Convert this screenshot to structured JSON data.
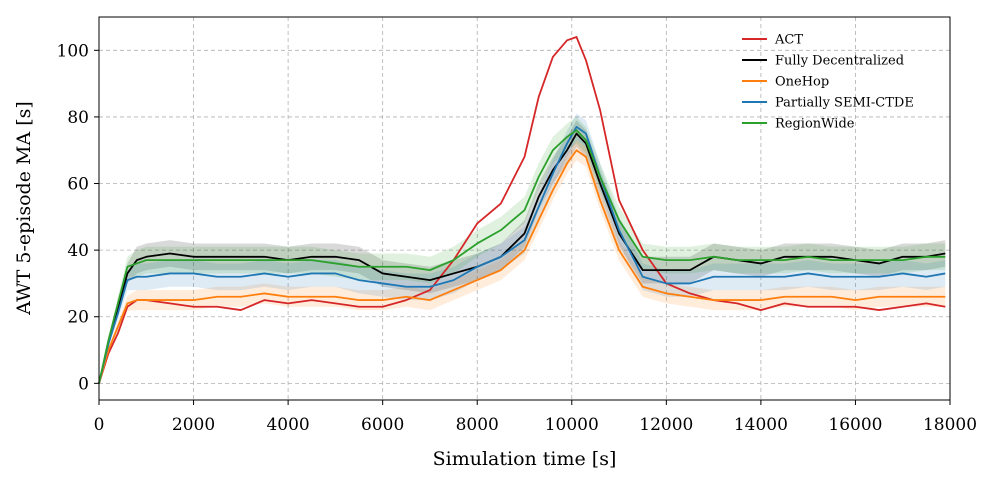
{
  "chart_data": {
    "type": "line",
    "title": "",
    "xlabel": "Simulation time [s]",
    "ylabel": "AWT 5-episode MA  [s]",
    "xlim": [
      0,
      18000
    ],
    "ylim": [
      -5,
      110
    ],
    "xticks": [
      0,
      2000,
      4000,
      6000,
      8000,
      10000,
      12000,
      14000,
      16000,
      18000
    ],
    "yticks": [
      0,
      20,
      40,
      60,
      80,
      100
    ],
    "grid": true,
    "legend_position": "top-right",
    "x": [
      0,
      200,
      400,
      600,
      800,
      1000,
      1500,
      2000,
      2500,
      3000,
      3500,
      4000,
      4500,
      5000,
      5500,
      6000,
      6500,
      7000,
      7500,
      8000,
      8500,
      9000,
      9300,
      9600,
      9900,
      10100,
      10300,
      10600,
      11000,
      11500,
      12000,
      12500,
      13000,
      13500,
      14000,
      14500,
      15000,
      15500,
      16000,
      16500,
      17000,
      17500,
      17900
    ],
    "series": [
      {
        "name": "ACT",
        "color": "#d62728",
        "values": [
          0,
          9,
          15,
          23,
          25,
          25,
          24,
          23,
          23,
          22,
          25,
          24,
          25,
          24,
          23,
          23,
          25,
          28,
          37,
          48,
          54,
          68,
          86,
          98,
          103,
          104,
          97,
          82,
          55,
          40,
          30,
          27,
          25,
          24,
          22,
          24,
          23,
          23,
          23,
          22,
          23,
          24,
          23
        ],
        "band": 0
      },
      {
        "name": "Fully Decentralized",
        "color": "#000000",
        "values": [
          0,
          12,
          22,
          33,
          37,
          38,
          39,
          38,
          38,
          38,
          38,
          37,
          38,
          38,
          37,
          33,
          32,
          31,
          33,
          35,
          38,
          45,
          56,
          64,
          70,
          75,
          72,
          60,
          45,
          34,
          34,
          34,
          38,
          37,
          36,
          38,
          38,
          38,
          37,
          36,
          38,
          38,
          39
        ],
        "band": 4
      },
      {
        "name": "OneHop",
        "color": "#ff7f0e",
        "values": [
          0,
          10,
          17,
          24,
          25,
          25,
          25,
          25,
          26,
          26,
          27,
          26,
          26,
          26,
          25,
          25,
          26,
          25,
          28,
          31,
          34,
          40,
          49,
          58,
          66,
          70,
          68,
          55,
          40,
          29,
          27,
          26,
          25,
          25,
          25,
          26,
          26,
          26,
          25,
          26,
          26,
          26,
          26
        ],
        "band": 3
      },
      {
        "name": "Partially SEMI-CTDE",
        "color": "#1f77b4",
        "values": [
          0,
          12,
          21,
          31,
          32,
          32,
          33,
          33,
          32,
          32,
          33,
          32,
          33,
          33,
          31,
          30,
          29,
          29,
          31,
          35,
          38,
          43,
          53,
          63,
          72,
          77,
          75,
          62,
          46,
          32,
          30,
          30,
          32,
          32,
          32,
          32,
          33,
          32,
          32,
          32,
          33,
          32,
          33
        ],
        "band": 4
      },
      {
        "name": "RegionWide",
        "color": "#2ca02c",
        "values": [
          0,
          13,
          24,
          35,
          36,
          37,
          37,
          37,
          37,
          37,
          37,
          37,
          37,
          36,
          35,
          35,
          35,
          34,
          37,
          42,
          46,
          52,
          62,
          70,
          74,
          76,
          73,
          62,
          49,
          38,
          37,
          37,
          38,
          37,
          37,
          37,
          38,
          37,
          37,
          37,
          37,
          38,
          38
        ],
        "band": 4
      }
    ]
  }
}
